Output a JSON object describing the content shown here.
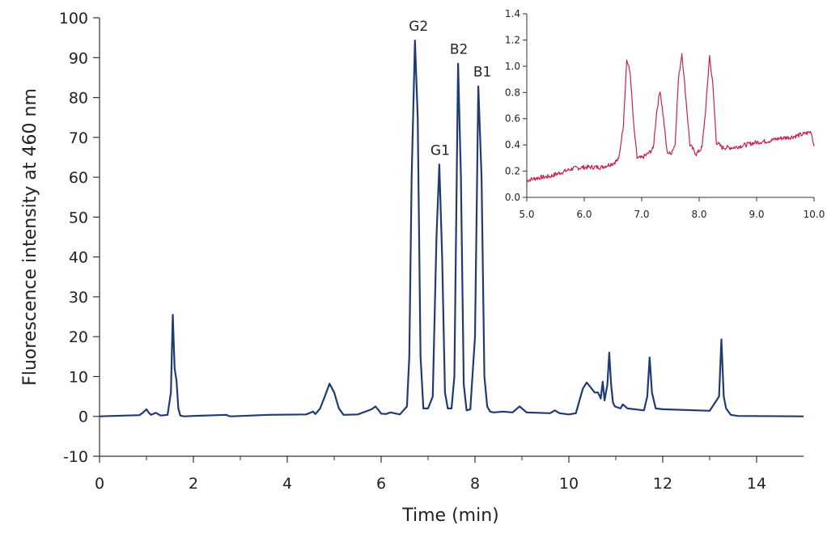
{
  "chart_data": [
    {
      "type": "line",
      "title": "",
      "xlabel": "Time (min)",
      "ylabel": "Fluorescence intensity at 460 nm",
      "xlim": [
        0,
        15
      ],
      "ylim": [
        -10,
        100
      ],
      "x_ticks": [
        "0",
        "2",
        "4",
        "6",
        "8",
        "10",
        "12",
        "14"
      ],
      "y_ticks": [
        "-10",
        "0",
        "10",
        "20",
        "30",
        "40",
        "50",
        "60",
        "70",
        "80",
        "90",
        "100"
      ],
      "grid": false,
      "color": "#1f3b73",
      "series": [
        {
          "x": [
            0,
            0.85,
            0.92,
            1.0,
            1.05,
            1.1,
            1.2,
            1.3,
            1.45,
            1.52,
            1.56,
            1.6,
            1.64,
            1.68,
            1.72,
            1.8,
            2.0,
            2.7,
            2.75,
            2.8,
            3.6,
            4.4,
            4.55,
            4.6,
            4.7,
            4.8,
            4.9,
            5.0,
            5.1,
            5.2,
            5.5,
            5.8,
            5.88,
            5.95,
            6.0,
            6.1,
            6.2,
            6.4,
            6.55,
            6.6,
            6.65,
            6.72,
            6.78,
            6.84,
            6.9,
            7.0,
            7.1,
            7.18,
            7.24,
            7.3,
            7.36,
            7.42,
            7.5,
            7.56,
            7.64,
            7.7,
            7.76,
            7.82,
            7.9,
            8.0,
            8.07,
            8.14,
            8.2,
            8.26,
            8.32,
            8.4,
            8.6,
            8.8,
            8.95,
            9.1,
            9.6,
            9.7,
            9.8,
            10.0,
            10.15,
            10.25,
            10.3,
            10.38,
            10.45,
            10.55,
            10.62,
            10.68,
            10.72,
            10.76,
            10.82,
            10.86,
            10.9,
            10.94,
            10.98,
            11.1,
            11.15,
            11.25,
            11.6,
            11.67,
            11.72,
            11.77,
            11.85,
            12.0,
            13.0,
            13.2,
            13.25,
            13.3,
            13.35,
            13.45,
            13.6,
            15.0
          ],
          "values": [
            0,
            0.3,
            0.9,
            1.8,
            0.9,
            0.4,
            0.9,
            0.2,
            0.4,
            6,
            25.5,
            12,
            9,
            2,
            0.2,
            0,
            0.1,
            0.4,
            0.1,
            0,
            0.4,
            0.5,
            1.2,
            0.6,
            2,
            5,
            8.2,
            6,
            2,
            0.4,
            0.5,
            1.8,
            2.5,
            1.5,
            0.7,
            0.6,
            1.0,
            0.5,
            2.5,
            15,
            60,
            94.3,
            75,
            15,
            2,
            2,
            5,
            45,
            63.2,
            40,
            6,
            2,
            2,
            10,
            88.5,
            60,
            8,
            1.5,
            1.8,
            20,
            82.8,
            60,
            10,
            2.5,
            1.2,
            1.0,
            1.2,
            1.0,
            2.5,
            1.0,
            0.8,
            1.5,
            0.8,
            0.5,
            0.8,
            5,
            7,
            8.5,
            7.5,
            6,
            6,
            4.5,
            8.7,
            4,
            8,
            16,
            8,
            3.5,
            2.5,
            2,
            3,
            2,
            1.5,
            5,
            14.8,
            6,
            2,
            1.8,
            1.4,
            5,
            19.3,
            5,
            2,
            0.4,
            0.1,
            0
          ]
        }
      ],
      "annotations": [
        "G2",
        "G1",
        "B2",
        "B1"
      ],
      "annotation_points": [
        {
          "label": "G2",
          "x": 6.78,
          "y": 94.3
        },
        {
          "label": "G1",
          "x": 7.24,
          "y": 63.2
        },
        {
          "label": "B2",
          "x": 7.64,
          "y": 88.5
        },
        {
          "label": "B1",
          "x": 8.14,
          "y": 82.8
        }
      ]
    },
    {
      "type": "line",
      "title": "",
      "xlabel": "",
      "ylabel": "",
      "xlim": [
        5.0,
        10.0
      ],
      "ylim": [
        0.0,
        1.4
      ],
      "x_ticks": [
        "5.0",
        "6.0",
        "7.0",
        "8.0",
        "9.0",
        "10.0"
      ],
      "y_ticks": [
        "0.0",
        "0.2",
        "0.4",
        "0.6",
        "0.8",
        "1.0",
        "1.2",
        "1.4"
      ],
      "grid": false,
      "color": "#c8224a",
      "series": [
        {
          "x": [
            5.0,
            5.2,
            5.4,
            5.6,
            5.8,
            6.0,
            6.3,
            6.5,
            6.6,
            6.68,
            6.74,
            6.8,
            6.86,
            6.92,
            7.0,
            7.1,
            7.2,
            7.26,
            7.32,
            7.38,
            7.44,
            7.5,
            7.58,
            7.64,
            7.7,
            7.76,
            7.84,
            7.95,
            8.05,
            8.12,
            8.18,
            8.24,
            8.3,
            8.4,
            8.6,
            8.8,
            9.0,
            9.2,
            9.4,
            9.6,
            9.8,
            9.95,
            10.0
          ],
          "values": [
            0.13,
            0.15,
            0.16,
            0.19,
            0.22,
            0.23,
            0.23,
            0.26,
            0.29,
            0.55,
            1.05,
            0.95,
            0.55,
            0.3,
            0.3,
            0.33,
            0.37,
            0.65,
            0.82,
            0.6,
            0.35,
            0.33,
            0.4,
            0.9,
            1.1,
            0.8,
            0.4,
            0.33,
            0.38,
            0.7,
            1.08,
            0.85,
            0.42,
            0.38,
            0.38,
            0.4,
            0.42,
            0.43,
            0.45,
            0.46,
            0.48,
            0.5,
            0.39
          ]
        }
      ]
    }
  ]
}
